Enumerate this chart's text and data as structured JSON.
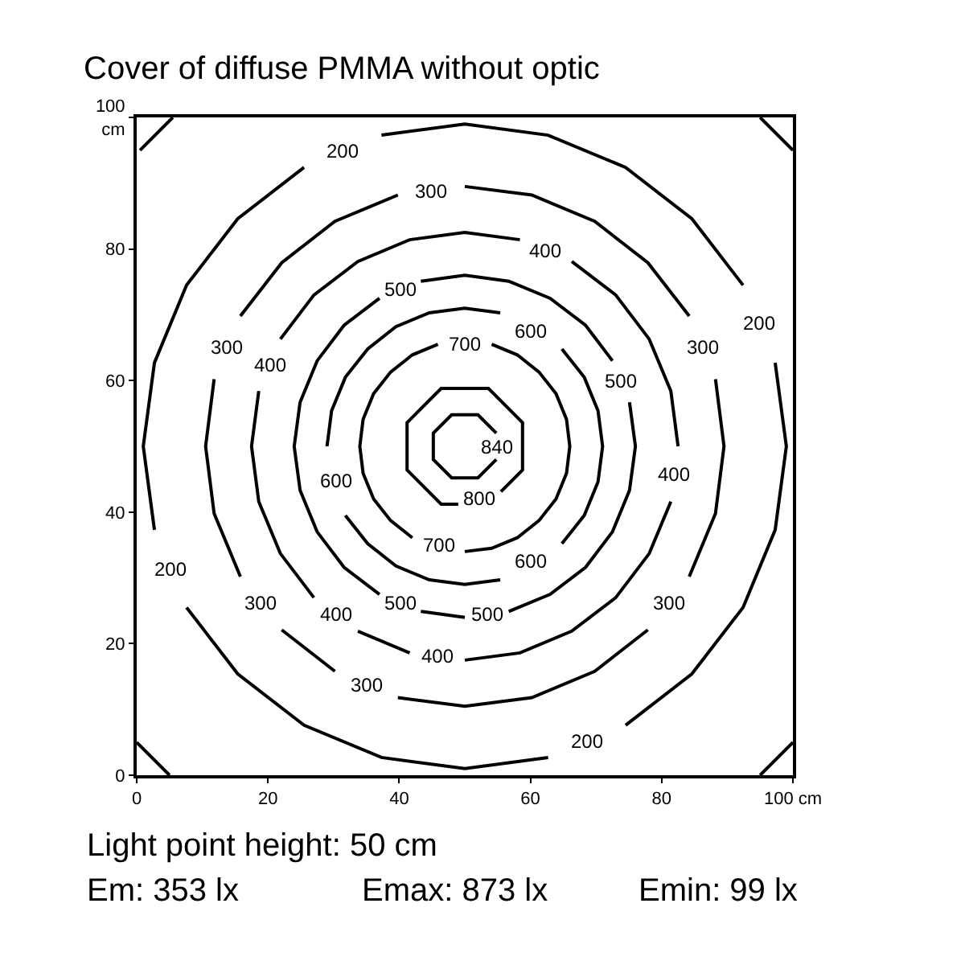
{
  "chart_data": {
    "type": "line",
    "title": "Cover of diffuse PMMA without optic",
    "xlim": [
      0,
      100
    ],
    "ylim": [
      0,
      100
    ],
    "xticks": [
      0,
      20,
      40,
      60,
      80,
      {
        "value": 100,
        "label": "100 cm"
      }
    ],
    "yticks": [
      0,
      20,
      40,
      60,
      80,
      {
        "value": 100,
        "label": "100\ncm"
      }
    ],
    "legend": false,
    "marker": "none",
    "line_style": "solid",
    "series": [
      {
        "name": "200",
        "color": "#000000",
        "x": [
          92.4,
          84.6,
          74.5,
          62.7,
          50,
          37.3,
          null,
          25.5,
          15.4,
          7.6,
          2.7,
          1,
          2.7,
          null,
          7.6,
          15.4,
          25.5,
          37.3,
          50,
          62.7,
          null,
          74.5,
          84.6,
          92.4,
          97.3,
          99,
          97.3
        ],
        "values": [
          74.5,
          84.6,
          92.4,
          97.3,
          99,
          97.3,
          null,
          92.4,
          84.6,
          74.5,
          62.7,
          50,
          37.3,
          null,
          25.5,
          15.4,
          7.6,
          2.7,
          1,
          2.7,
          null,
          7.6,
          15.4,
          25.5,
          37.3,
          50,
          62.7
        ]
      },
      {
        "name": "300",
        "color": "#000000",
        "x": [
          84.2,
          77.9,
          69.8,
          60.2,
          50,
          null,
          39.8,
          30.2,
          22.1,
          15.8,
          null,
          11.8,
          10.5,
          11.8,
          15.8,
          null,
          22.1,
          30.2,
          null,
          39.8,
          50,
          60.2,
          69.8,
          77.9,
          null,
          84.2,
          88.2,
          89.5,
          88.2
        ],
        "values": [
          69.8,
          77.9,
          84.2,
          88.2,
          89.5,
          null,
          88.2,
          84.2,
          77.9,
          69.8,
          null,
          60.2,
          50,
          39.8,
          30.2,
          null,
          22.1,
          15.8,
          null,
          11.8,
          10.5,
          11.8,
          15.8,
          22.1,
          null,
          30.2,
          39.8,
          50,
          60.2
        ]
      },
      {
        "name": "400",
        "color": "#000000",
        "x": [
          82.5,
          81.4,
          78.1,
          73,
          66.3,
          null,
          58.4,
          50,
          41.6,
          33.7,
          27,
          21.9,
          null,
          18.6,
          17.5,
          18.6,
          21.9,
          27,
          null,
          33.7,
          41.6,
          null,
          50,
          58.4,
          66.3,
          73,
          78.1,
          81.4
        ],
        "values": [
          50,
          58.4,
          66.3,
          73,
          78.1,
          null,
          81.4,
          82.5,
          81.4,
          78.1,
          73,
          66.3,
          null,
          58.4,
          50,
          41.6,
          33.7,
          27,
          null,
          21.9,
          18.6,
          null,
          17.5,
          18.6,
          21.9,
          27,
          33.7,
          41.6
        ]
      },
      {
        "name": "500",
        "color": "#000000",
        "x": [
          72.5,
          68.4,
          63,
          56.7,
          50,
          43.3,
          null,
          37,
          31.6,
          27.5,
          24.9,
          24,
          24.9,
          27.5,
          31.6,
          37,
          null,
          43.3,
          50,
          null,
          56.7,
          63,
          68.4,
          72.5,
          75.1,
          76,
          75.1
        ],
        "values": [
          63,
          68.4,
          72.5,
          75.1,
          76,
          75.1,
          null,
          72.5,
          68.4,
          63,
          56.7,
          50,
          43.3,
          37,
          31.6,
          27.5,
          null,
          24.9,
          24,
          null,
          24.9,
          27.5,
          31.6,
          37,
          43.3,
          50,
          56.7
        ]
      },
      {
        "name": "600",
        "color": "#000000",
        "x": [
          55.4,
          50,
          44.6,
          39.5,
          35.2,
          31.8,
          29.7,
          29,
          null,
          31.8,
          35.2,
          39.5,
          44.6,
          50,
          55.4,
          null,
          64.8,
          68.2,
          70.3,
          71,
          70.3,
          68.2,
          64.8
        ],
        "values": [
          70.3,
          71,
          70.3,
          68.2,
          64.8,
          60.5,
          55.4,
          50,
          null,
          39.5,
          35.2,
          31.8,
          29.7,
          29,
          29.7,
          null,
          35.2,
          39.5,
          44.6,
          50,
          55.4,
          60.5,
          64.8
        ]
      },
      {
        "name": "700",
        "color": "#000000",
        "x": [
          45.9,
          42,
          38.7,
          36.1,
          34.5,
          34,
          34.5,
          36.1,
          38.7,
          42,
          null,
          50,
          54.1,
          58,
          61.3,
          63.9,
          65.5,
          66,
          65.5,
          63.9,
          61.3,
          58,
          54.1
        ],
        "values": [
          65.5,
          63.9,
          61.3,
          58,
          54.1,
          50,
          45.9,
          42,
          38.7,
          36.1,
          null,
          34,
          34.5,
          36.1,
          38.7,
          42,
          45.9,
          50,
          54.1,
          58,
          61.3,
          63.9,
          65.5
        ]
      },
      {
        "name": "800",
        "color": "#000000",
        "x": [
          55.5,
          58.8,
          58.8,
          53.6,
          46.4,
          41.2,
          41.2,
          46.4,
          49
        ],
        "values": [
          43.1,
          46.4,
          53.6,
          58.8,
          58.8,
          53.6,
          46.4,
          41.2,
          41.2
        ]
      },
      {
        "name": "840",
        "color": "#000000",
        "x": [
          54.8,
          52,
          48,
          45.2,
          45.2,
          48,
          52,
          54.8
        ],
        "values": [
          52,
          54.8,
          54.8,
          52,
          48,
          45.2,
          45.2,
          48
        ]
      },
      {
        "color": "#000000",
        "x": [
          0,
          5
        ],
        "values": [
          5,
          0
        ]
      },
      {
        "color": "#000000",
        "x": [
          0.5,
          5.5
        ],
        "values": [
          95,
          100
        ]
      },
      {
        "color": "#000000",
        "x": [
          95,
          100
        ],
        "values": [
          100,
          95
        ]
      },
      {
        "color": "#000000",
        "x": [
          95,
          100
        ],
        "values": [
          0,
          5
        ]
      }
    ],
    "annotations": [
      "Light point height: 50 cm",
      "Em: 353 lx",
      "Emax: 873 lx",
      "Emin: 99 lx"
    ]
  }
}
